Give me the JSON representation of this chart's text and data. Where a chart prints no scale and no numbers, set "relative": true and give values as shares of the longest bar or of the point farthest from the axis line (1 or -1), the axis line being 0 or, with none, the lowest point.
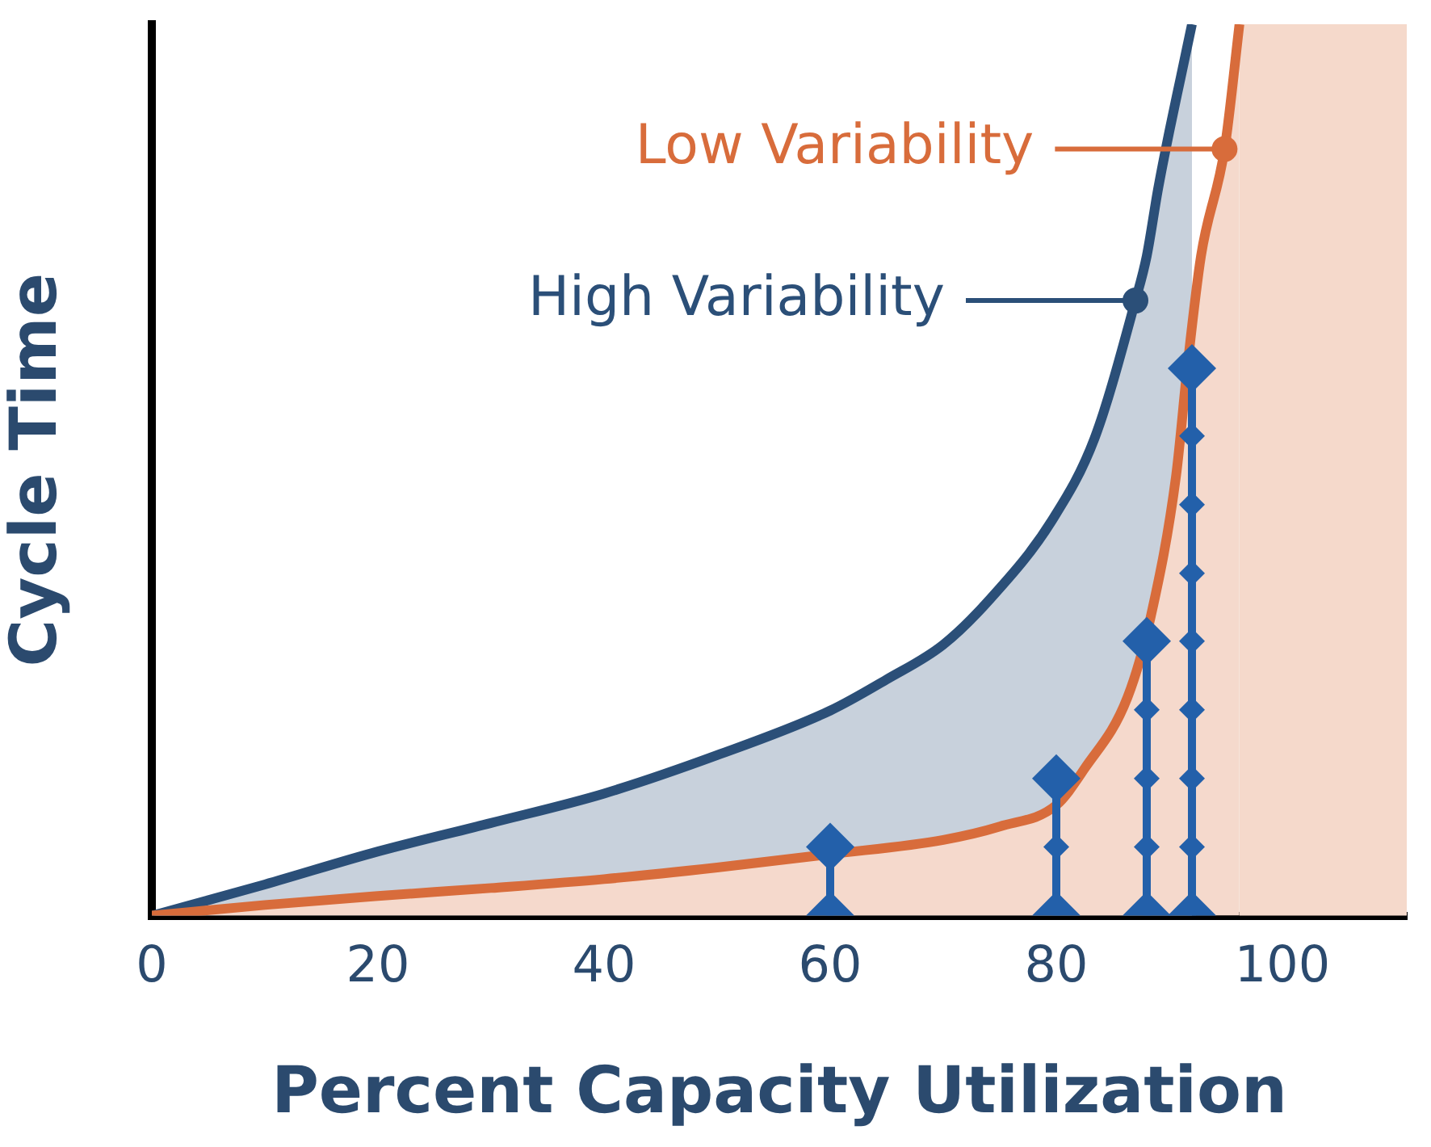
{
  "chart_data": {
    "type": "area",
    "xlabel": "Percent Capacity Utilization",
    "ylabel": "Cycle Time",
    "relative": true,
    "xlim": [
      0,
      111
    ],
    "xticks": [
      0,
      20,
      40,
      60,
      80,
      100
    ],
    "grid": false,
    "legend": "top right",
    "marker": "none",
    "series": [
      {
        "name": "High Variability",
        "color": "#2b4f78",
        "x": [
          0,
          10,
          20,
          30,
          40,
          50,
          60,
          65,
          70,
          74.2,
          79.6,
          83.4,
          87,
          88,
          89,
          90,
          91,
          92
        ],
        "values": [
          0,
          0.035,
          0.072,
          0.104,
          0.137,
          0.18,
          0.23,
          0.265,
          0.304,
          0.356,
          0.443,
          0.536,
          0.69,
          0.74,
          0.815,
          0.88,
          0.94,
          1.0
        ]
      },
      {
        "name": "Low Variability",
        "color": "#d86c3b",
        "x": [
          0,
          10,
          20,
          30,
          40,
          50,
          60,
          70,
          75,
          80,
          82.5,
          86.3,
          88.4,
          90.6,
          91.6,
          92.8,
          94.9,
          96.2
        ],
        "values": [
          0,
          0.012,
          0.022,
          0.031,
          0.041,
          0.054,
          0.069,
          0.085,
          0.1,
          0.124,
          0.165,
          0.245,
          0.338,
          0.494,
          0.616,
          0.74,
          0.861,
          1.0
        ]
      },
      {
        "type": "line",
        "marker": "diamond",
        "color": "#2360aa",
        "x": [
          60,
          60
        ],
        "values": [
          0,
          0.077
        ]
      },
      {
        "type": "line",
        "marker": "diamond",
        "color": "#2360aa",
        "x": [
          80,
          80,
          80
        ],
        "values": [
          0,
          0.077,
          0.154
        ]
      },
      {
        "type": "line",
        "marker": "diamond",
        "color": "#2360aa",
        "x": [
          88,
          88,
          88,
          88,
          88
        ],
        "values": [
          0,
          0.077,
          0.154,
          0.231,
          0.308
        ]
      },
      {
        "type": "line",
        "marker": "diamond",
        "color": "#2360aa",
        "x": [
          92,
          92,
          92,
          92,
          92,
          92,
          92,
          92,
          92
        ],
        "values": [
          0,
          0.077,
          0.154,
          0.231,
          0.308,
          0.384,
          0.461,
          0.538,
          0.614
        ]
      }
    ],
    "bands": [
      {
        "axis": "x",
        "from": 96.2,
        "to": 111,
        "color": "#f5d9cb"
      }
    ]
  }
}
